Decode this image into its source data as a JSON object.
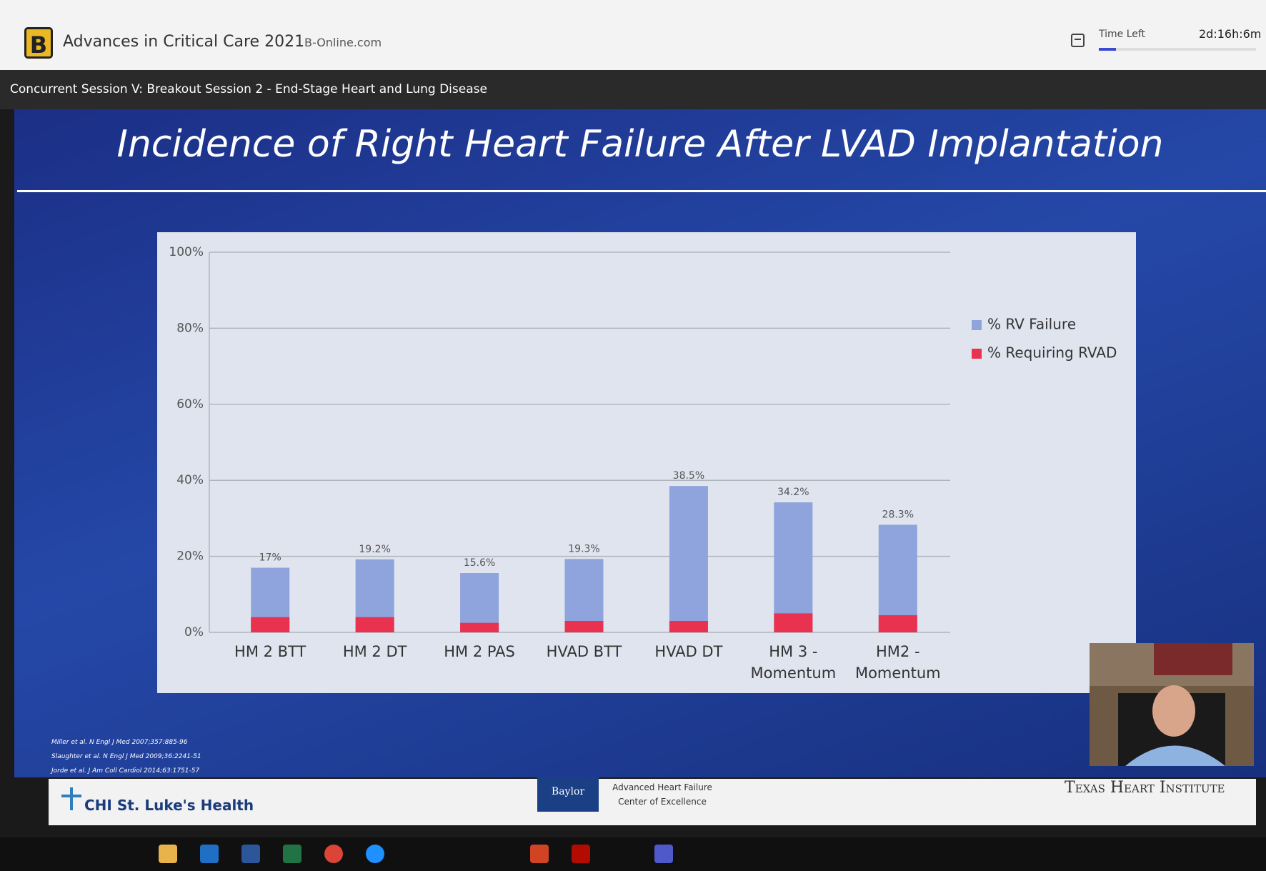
{
  "header": {
    "logo": "B",
    "brand": "Advances in Critical Care 2021",
    "site": "B-Online.com",
    "timer_label": "Time Left",
    "timer": "2d:16h:6m"
  },
  "session": {
    "title": "Concurrent Session V: Breakout Session 2 - End-Stage Heart and Lung Disease"
  },
  "chart_data": {
    "type": "bar",
    "title": "Incidence of Right Heart Failure After LVAD Implantation",
    "categories": [
      "HM 2 BTT",
      "HM 2 DT",
      "HM 2 PAS",
      "HVAD BTT",
      "HVAD DT",
      "HM 3 - Momentum",
      "HM2 - Momentum"
    ],
    "series": [
      {
        "name": "% RV Failure",
        "color": "#8fa4dd",
        "values": [
          17,
          19.2,
          15.6,
          19.3,
          38.5,
          34.2,
          28.3
        ],
        "value_labels": [
          "17%",
          "19.2%",
          "15.6%",
          "19.3%",
          "38.5%",
          "34.2%",
          "28.3%"
        ]
      },
      {
        "name": "% Requiring RVAD",
        "color": "#e8324f",
        "values": [
          4,
          4,
          2.5,
          3,
          3,
          5,
          4.5
        ]
      }
    ],
    "overlap": true,
    "ylim": [
      0,
      100
    ],
    "yticks": [
      {
        "value": 0,
        "label": "0%"
      },
      {
        "value": 20,
        "label": "20%"
      },
      {
        "value": 40,
        "label": "40%"
      },
      {
        "value": 60,
        "label": "60%"
      },
      {
        "value": 80,
        "label": "80%"
      },
      {
        "value": 100,
        "label": "100%"
      }
    ],
    "grid": true,
    "legend": "right"
  },
  "references": [
    "Miller et al. N Engl J Med 2007;357:885-96",
    "Slaughter et al. N Engl J Med 2009;36:2241-51",
    "Jorde et al. J Am Coll Cardiol 2014;63:1751-57"
  ],
  "footer": {
    "left": "CHI St. Luke's Health",
    "baylor": "Baylor",
    "center": "Advanced Heart Failure Center of Excellence",
    "right": "Texas Heart Institute"
  }
}
